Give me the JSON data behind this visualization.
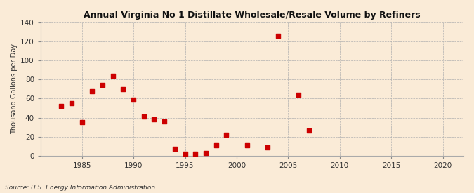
{
  "title": "Annual Virginia No 1 Distillate Wholesale/Resale Volume by Refiners",
  "ylabel": "Thousand Gallons per Day",
  "source": "Source: U.S. Energy Information Administration",
  "background_color": "#faebd7",
  "marker_color": "#cc0000",
  "marker": "s",
  "marker_size": 14,
  "xlim": [
    1981,
    2022
  ],
  "ylim": [
    0,
    140
  ],
  "yticks": [
    0,
    20,
    40,
    60,
    80,
    100,
    120,
    140
  ],
  "xticks": [
    1985,
    1990,
    1995,
    2000,
    2005,
    2010,
    2015,
    2020
  ],
  "data": [
    [
      1983,
      52
    ],
    [
      1984,
      55
    ],
    [
      1985,
      35
    ],
    [
      1986,
      68
    ],
    [
      1987,
      74
    ],
    [
      1988,
      84
    ],
    [
      1989,
      70
    ],
    [
      1990,
      59
    ],
    [
      1991,
      41
    ],
    [
      1992,
      38
    ],
    [
      1993,
      36
    ],
    [
      1994,
      7
    ],
    [
      1995,
      2
    ],
    [
      1996,
      2
    ],
    [
      1997,
      3
    ],
    [
      1998,
      11
    ],
    [
      1999,
      22
    ],
    [
      2001,
      11
    ],
    [
      2003,
      9
    ],
    [
      2004,
      126
    ],
    [
      2006,
      64
    ],
    [
      2007,
      26
    ]
  ]
}
